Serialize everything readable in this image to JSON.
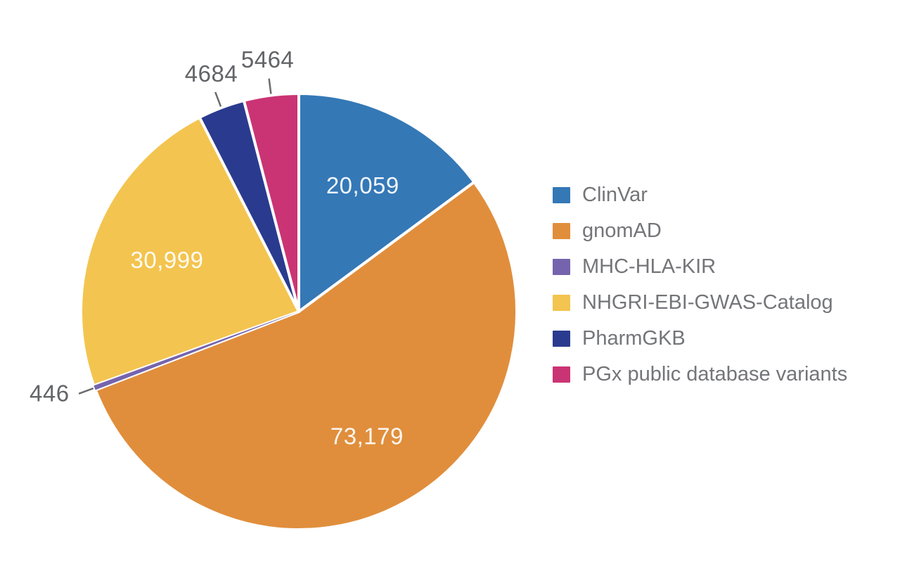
{
  "chart_data": {
    "type": "pie",
    "title": "",
    "direction": "clockwise",
    "start_angle_deg": 0,
    "legend_position": "right",
    "series": [
      {
        "name": "ClinVar",
        "value": 20059,
        "label": "20,059",
        "color": "#3478b6",
        "label_placement": "inside"
      },
      {
        "name": "gnomAD",
        "value": 73179,
        "label": "73,179",
        "color": "#e08e3c",
        "label_placement": "inside"
      },
      {
        "name": "MHC-HLA-KIR",
        "value": 446,
        "label": "446",
        "color": "#7564ad",
        "label_placement": "outside"
      },
      {
        "name": "NHGRI-EBI-GWAS-Catalog",
        "value": 30999,
        "label": "30,999",
        "color": "#f3c44f",
        "label_placement": "inside"
      },
      {
        "name": "PharmGKB",
        "value": 4684,
        "label": "4684",
        "color": "#2a3b8f",
        "label_placement": "outside"
      },
      {
        "name": "PGx public database variants",
        "value": 5464,
        "label": "5464",
        "color": "#ca3474",
        "label_placement": "outside"
      }
    ]
  },
  "style": {
    "background": "#ffffff",
    "slice_gap_color": "#ffffff",
    "inside_value_color": "#ffffff",
    "inside_value_opacity": 0.93,
    "outside_value_color": "#636468",
    "leader_line_color": "#6a6b6e",
    "legend_text_color": "#747579"
  }
}
